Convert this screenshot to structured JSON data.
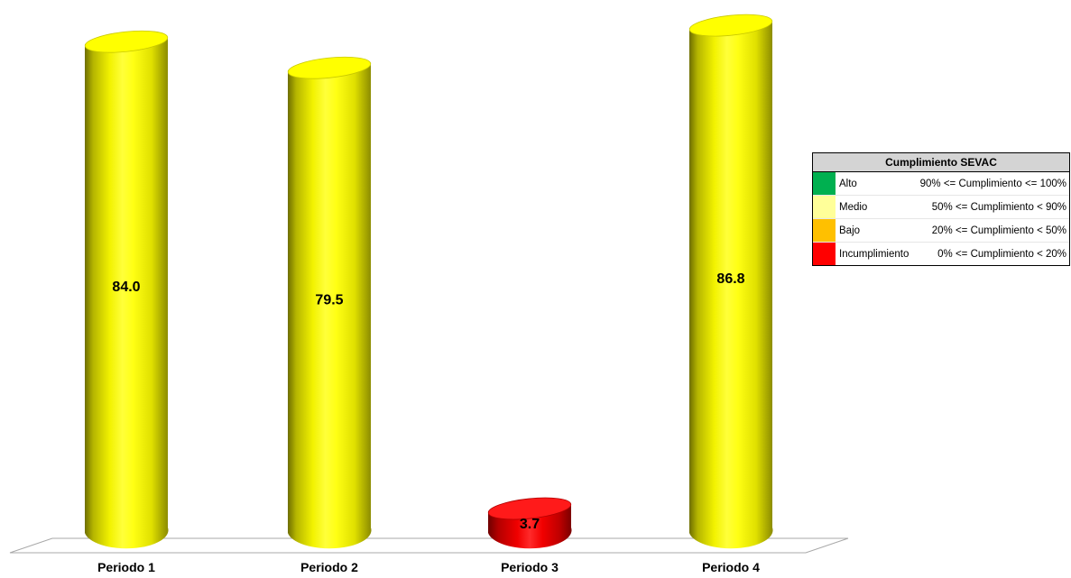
{
  "chart_data": {
    "type": "bar",
    "title": "",
    "xlabel": "",
    "ylabel": "",
    "categories": [
      "Periodo 1",
      "Periodo 2",
      "Periodo 3",
      "Periodo 4"
    ],
    "values": [
      84.0,
      79.5,
      3.7,
      86.8
    ],
    "value_labels": [
      "84.0",
      "79.5",
      "3.7",
      "86.8"
    ],
    "bar_colors": [
      "#ffff00",
      "#ffff00",
      "#ff0000",
      "#ffff00"
    ],
    "ylim": [
      0,
      100
    ],
    "grid": false,
    "legend_position": "right",
    "three_d": true
  },
  "legend": {
    "title": "Cumplimiento SEVAC",
    "items": [
      {
        "name": "Alto",
        "range": "90% <= Cumplimiento <= 100%",
        "color": "#00b050"
      },
      {
        "name": "Medio",
        "range": "50% <= Cumplimiento < 90%",
        "color": "#ffff99"
      },
      {
        "name": "Bajo",
        "range": "20% <= Cumplimiento < 50%",
        "color": "#ffc000"
      },
      {
        "name": "Incumplimiento",
        "range": "0% <= Cumplimiento < 20%",
        "color": "#ff0000"
      }
    ]
  }
}
